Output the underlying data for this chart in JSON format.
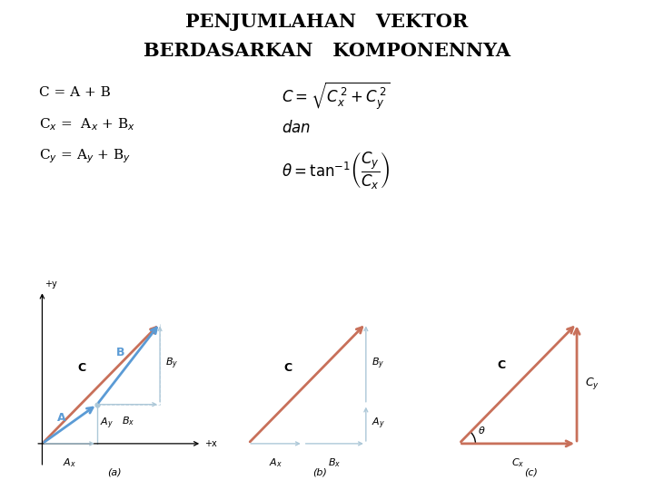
{
  "title_line1": "PENJUMLAHAN   VEKTOR",
  "title_line2": "BERDASARKAN   KOMPONENNYA",
  "title_fontsize": 15,
  "title_fontweight": "bold",
  "bg_color": "#ffffff",
  "red_color": "#c8705a",
  "blue_color": "#5b9bd5",
  "light_blue": "#adc8d8",
  "text_color": "#000000",
  "fig_labels": [
    "(a)",
    "(b)",
    "(c)"
  ]
}
